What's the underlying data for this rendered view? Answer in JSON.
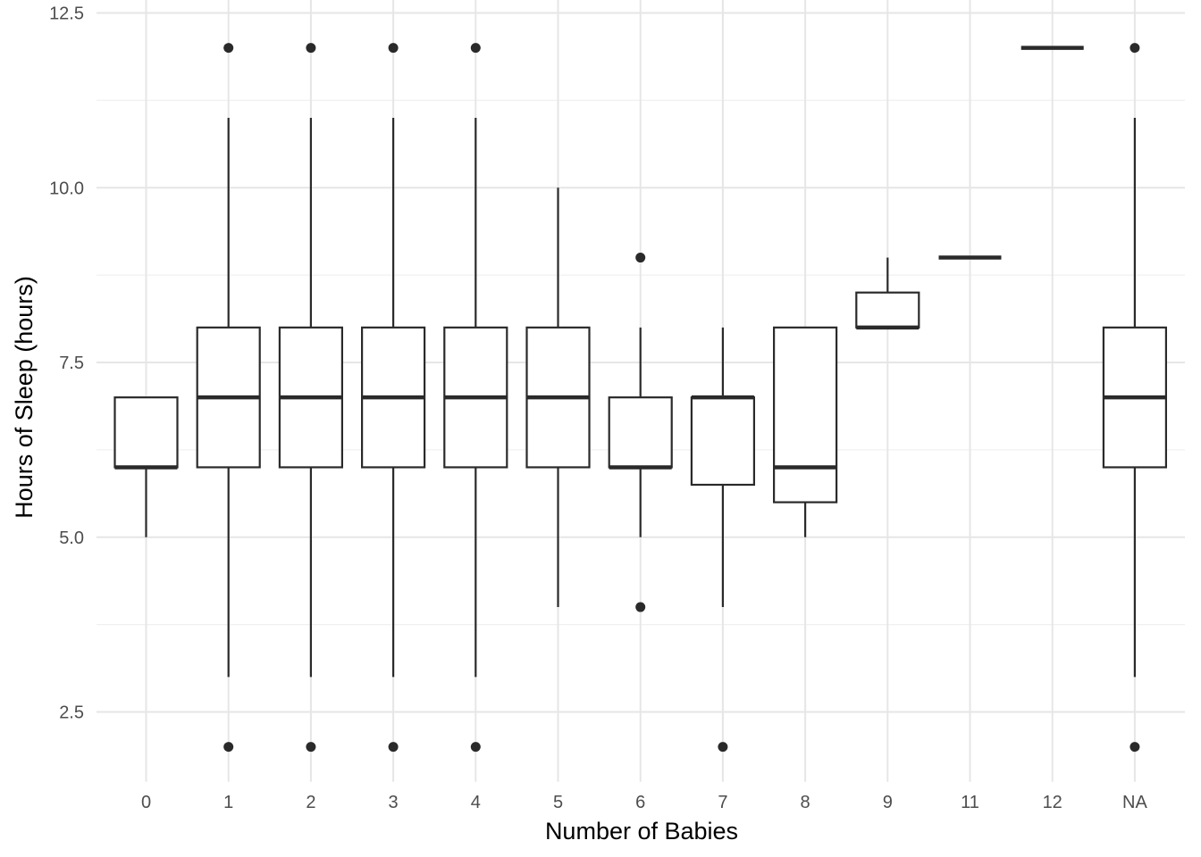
{
  "chart_data": {
    "type": "boxplot",
    "xlabel": "Number of Babies",
    "ylabel": "Hours of Sleep (hours)",
    "ylim": [
      1.5,
      12.7
    ],
    "y_ticks": [
      2.5,
      5.0,
      7.5,
      10.0,
      12.5
    ],
    "y_tick_labels": [
      "2.5",
      "5.0",
      "7.5",
      "10.0",
      "12.5"
    ],
    "grid": true,
    "categories": [
      "0",
      "1",
      "2",
      "3",
      "4",
      "5",
      "6",
      "7",
      "8",
      "9",
      "11",
      "12",
      "NA"
    ],
    "boxes": [
      {
        "category": "0",
        "lower_whisker": 5,
        "q1": 6,
        "median": 6,
        "q3": 7,
        "upper_whisker": 7,
        "outliers": []
      },
      {
        "category": "1",
        "lower_whisker": 3,
        "q1": 6,
        "median": 7,
        "q3": 8,
        "upper_whisker": 11,
        "outliers": [
          2,
          12
        ]
      },
      {
        "category": "2",
        "lower_whisker": 3,
        "q1": 6,
        "median": 7,
        "q3": 8,
        "upper_whisker": 11,
        "outliers": [
          2,
          12
        ]
      },
      {
        "category": "3",
        "lower_whisker": 3,
        "q1": 6,
        "median": 7,
        "q3": 8,
        "upper_whisker": 11,
        "outliers": [
          2,
          12
        ]
      },
      {
        "category": "4",
        "lower_whisker": 3,
        "q1": 6,
        "median": 7,
        "q3": 8,
        "upper_whisker": 11,
        "outliers": [
          2,
          12
        ]
      },
      {
        "category": "5",
        "lower_whisker": 4,
        "q1": 6,
        "median": 7,
        "q3": 8,
        "upper_whisker": 10,
        "outliers": []
      },
      {
        "category": "6",
        "lower_whisker": 5,
        "q1": 6,
        "median": 6,
        "q3": 7,
        "upper_whisker": 8,
        "outliers": [
          4,
          9
        ]
      },
      {
        "category": "7",
        "lower_whisker": 4,
        "q1": 5.75,
        "median": 7,
        "q3": 7,
        "upper_whisker": 8,
        "outliers": [
          2
        ]
      },
      {
        "category": "8",
        "lower_whisker": 5,
        "q1": 5.5,
        "median": 6,
        "q3": 8,
        "upper_whisker": 8,
        "outliers": []
      },
      {
        "category": "9",
        "lower_whisker": 8,
        "q1": 8,
        "median": 8,
        "q3": 8.5,
        "upper_whisker": 9,
        "outliers": []
      },
      {
        "category": "11",
        "lower_whisker": 9,
        "q1": 9,
        "median": 9,
        "q3": 9,
        "upper_whisker": 9,
        "outliers": []
      },
      {
        "category": "12",
        "lower_whisker": 12,
        "q1": 12,
        "median": 12,
        "q3": 12,
        "upper_whisker": 12,
        "outliers": []
      },
      {
        "category": "NA",
        "lower_whisker": 3,
        "q1": 6,
        "median": 7,
        "q3": 8,
        "upper_whisker": 11,
        "outliers": [
          2,
          12
        ]
      }
    ],
    "colors": {
      "box_stroke": "#2a2a2a",
      "grid": "#e6e6e6",
      "tick_text": "#4d4d4d"
    }
  }
}
